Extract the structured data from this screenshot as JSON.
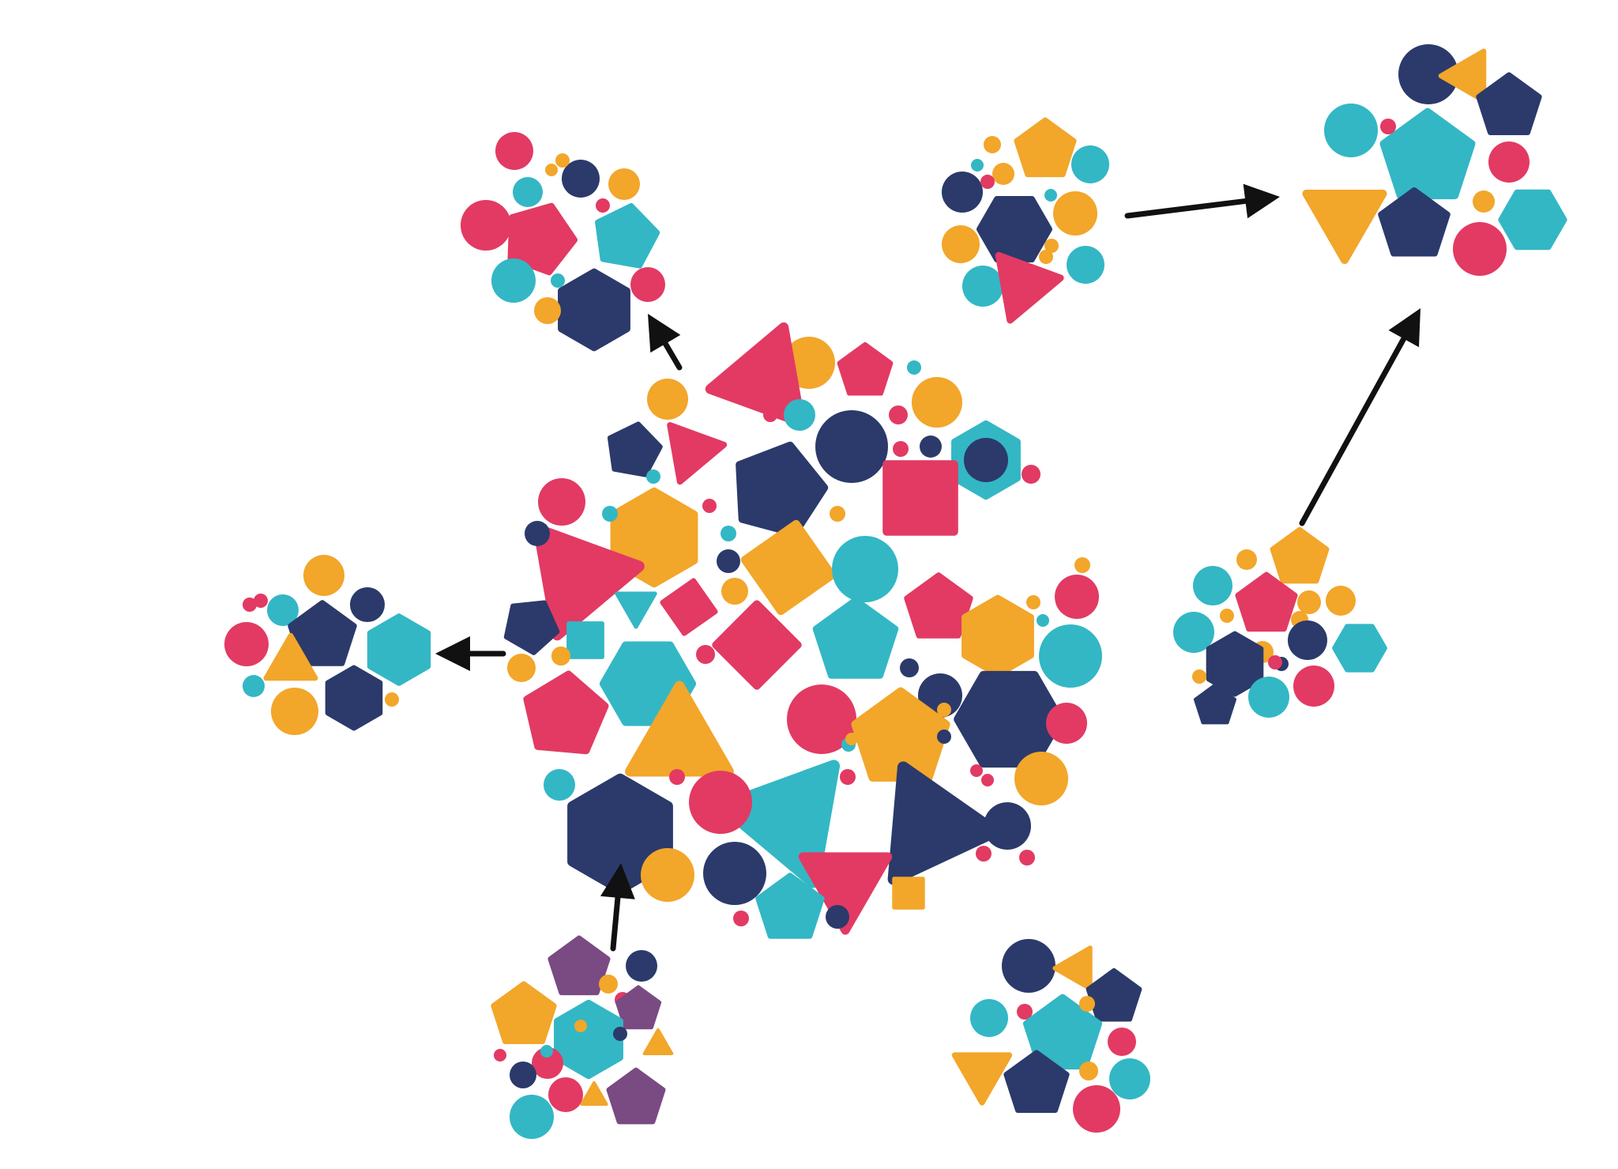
{
  "palette": {
    "navy": "#2b3a6b",
    "teal": "#33b7c5",
    "yellow": "#f2a62a",
    "pink": "#e23a63",
    "purple": "#7a4a82",
    "arrow": "#111111",
    "background": "#ffffff"
  },
  "clusters": [
    {
      "id": "central-cluster",
      "role": "hub"
    },
    {
      "id": "cluster-top-left",
      "role": "satellite"
    },
    {
      "id": "cluster-left",
      "role": "satellite"
    },
    {
      "id": "cluster-bottom-left",
      "role": "satellite",
      "accent": "purple"
    },
    {
      "id": "cluster-top-right-a",
      "role": "satellite"
    },
    {
      "id": "cluster-top-right-b",
      "role": "satellite"
    },
    {
      "id": "cluster-right",
      "role": "satellite"
    },
    {
      "id": "cluster-bottom-right",
      "role": "satellite"
    }
  ],
  "arrows": [
    {
      "id": "arrow-hub-to-top-left",
      "from": "central-cluster",
      "to": "cluster-top-left"
    },
    {
      "id": "arrow-hub-to-left",
      "from": "central-cluster",
      "to": "cluster-left"
    },
    {
      "id": "arrow-bottom-left-to-hub",
      "from": "cluster-bottom-left",
      "to": "central-cluster"
    },
    {
      "id": "arrow-top-right-a-to-b",
      "from": "cluster-top-right-a",
      "to": "cluster-top-right-b"
    },
    {
      "id": "arrow-right-to-top-right-b",
      "from": "cluster-right",
      "to": "cluster-top-right-b"
    }
  ]
}
